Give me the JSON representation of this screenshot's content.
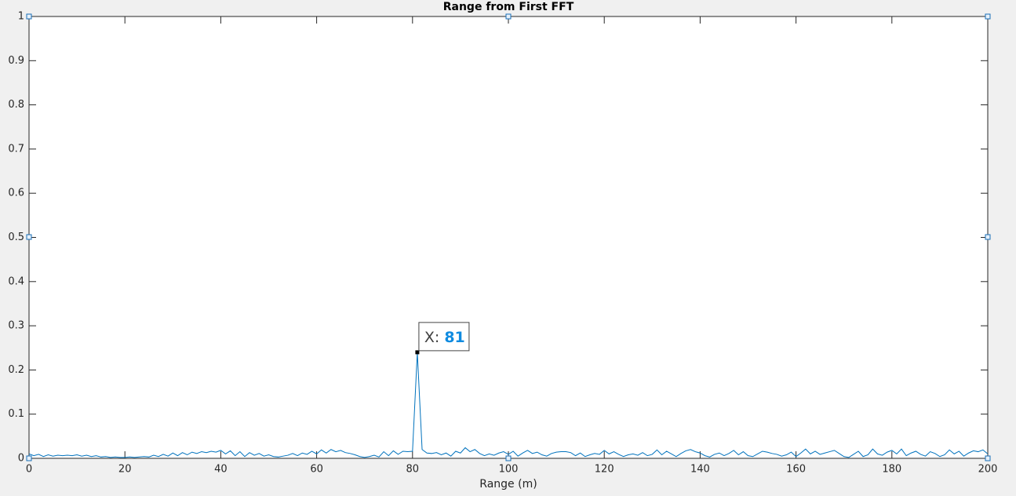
{
  "chart_data": {
    "type": "line",
    "title": "Range from First FFT",
    "x_label": "Range (m)",
    "x": [
      0,
      1,
      2,
      3,
      4,
      5,
      6,
      7,
      8,
      9,
      10,
      11,
      12,
      13,
      14,
      15,
      16,
      17,
      18,
      19,
      20,
      21,
      22,
      23,
      24,
      25,
      26,
      27,
      28,
      29,
      30,
      31,
      32,
      33,
      34,
      35,
      36,
      37,
      38,
      39,
      40,
      41,
      42,
      43,
      44,
      45,
      46,
      47,
      48,
      49,
      50,
      51,
      52,
      53,
      54,
      55,
      56,
      57,
      58,
      59,
      60,
      61,
      62,
      63,
      64,
      65,
      66,
      67,
      68,
      69,
      70,
      71,
      72,
      73,
      74,
      75,
      76,
      77,
      78,
      79,
      80,
      81,
      82,
      83,
      84,
      85,
      86,
      87,
      88,
      89,
      90,
      91,
      92,
      93,
      94,
      95,
      96,
      97,
      98,
      99,
      100,
      101,
      102,
      103,
      104,
      105,
      106,
      107,
      108,
      109,
      110,
      111,
      112,
      113,
      114,
      115,
      116,
      117,
      118,
      119,
      120,
      121,
      122,
      123,
      124,
      125,
      126,
      127,
      128,
      129,
      130,
      131,
      132,
      133,
      134,
      135,
      136,
      137,
      138,
      139,
      140,
      141,
      142,
      143,
      144,
      145,
      146,
      147,
      148,
      149,
      150,
      151,
      152,
      153,
      154,
      155,
      156,
      157,
      158,
      159,
      160,
      161,
      162,
      163,
      164,
      165,
      166,
      167,
      168,
      169,
      170,
      171,
      172,
      173,
      174,
      175,
      176,
      177,
      178,
      179,
      180,
      181,
      182,
      183,
      184,
      185,
      186,
      187,
      188,
      189,
      190,
      191,
      192,
      193,
      194,
      195,
      196,
      197,
      198,
      199,
      200
    ],
    "values": [
      0.01,
      0.006,
      0.009,
      0.004,
      0.008,
      0.005,
      0.007,
      0.006,
      0.007,
      0.006,
      0.008,
      0.005,
      0.007,
      0.004,
      0.006,
      0.003,
      0.004,
      0.002,
      0.003,
      0.002,
      0.002,
      0.003,
      0.002,
      0.003,
      0.004,
      0.003,
      0.007,
      0.004,
      0.009,
      0.005,
      0.012,
      0.006,
      0.013,
      0.008,
      0.014,
      0.011,
      0.015,
      0.013,
      0.016,
      0.014,
      0.018,
      0.01,
      0.017,
      0.006,
      0.015,
      0.004,
      0.013,
      0.007,
      0.011,
      0.005,
      0.008,
      0.004,
      0.003,
      0.005,
      0.007,
      0.011,
      0.006,
      0.012,
      0.009,
      0.016,
      0.01,
      0.019,
      0.012,
      0.02,
      0.015,
      0.018,
      0.013,
      0.011,
      0.008,
      0.004,
      0.002,
      0.004,
      0.007,
      0.003,
      0.015,
      0.006,
      0.017,
      0.009,
      0.016,
      0.015,
      0.016,
      0.24,
      0.02,
      0.012,
      0.011,
      0.013,
      0.008,
      0.012,
      0.005,
      0.016,
      0.012,
      0.024,
      0.015,
      0.02,
      0.011,
      0.006,
      0.01,
      0.007,
      0.012,
      0.015,
      0.009,
      0.016,
      0.005,
      0.012,
      0.018,
      0.011,
      0.014,
      0.008,
      0.005,
      0.011,
      0.014,
      0.015,
      0.015,
      0.013,
      0.006,
      0.012,
      0.004,
      0.008,
      0.011,
      0.009,
      0.018,
      0.01,
      0.015,
      0.009,
      0.004,
      0.008,
      0.01,
      0.007,
      0.013,
      0.006,
      0.009,
      0.019,
      0.008,
      0.016,
      0.01,
      0.004,
      0.011,
      0.017,
      0.02,
      0.015,
      0.012,
      0.006,
      0.003,
      0.009,
      0.012,
      0.006,
      0.011,
      0.018,
      0.008,
      0.015,
      0.006,
      0.004,
      0.01,
      0.016,
      0.014,
      0.011,
      0.009,
      0.005,
      0.008,
      0.014,
      0.004,
      0.012,
      0.021,
      0.01,
      0.016,
      0.009,
      0.012,
      0.015,
      0.018,
      0.011,
      0.004,
      0.002,
      0.009,
      0.016,
      0.004,
      0.008,
      0.021,
      0.01,
      0.007,
      0.014,
      0.018,
      0.01,
      0.021,
      0.006,
      0.012,
      0.016,
      0.009,
      0.005,
      0.015,
      0.011,
      0.004,
      0.008,
      0.019,
      0.01,
      0.016,
      0.005,
      0.012,
      0.017,
      0.015,
      0.019,
      0.01
    ],
    "color": "#0072bd",
    "xlim": [
      0,
      200
    ],
    "xticks": [
      0,
      20,
      40,
      60,
      80,
      100,
      120,
      140,
      160,
      180,
      200
    ],
    "ylim": [
      0,
      1
    ],
    "yticks": [
      0,
      0.1,
      0.2,
      0.3,
      0.4,
      0.5,
      0.6,
      0.7,
      0.8,
      0.9,
      1
    ],
    "grid": false,
    "datatip": {
      "label": "X:",
      "x": 81,
      "y": 0.24
    }
  }
}
